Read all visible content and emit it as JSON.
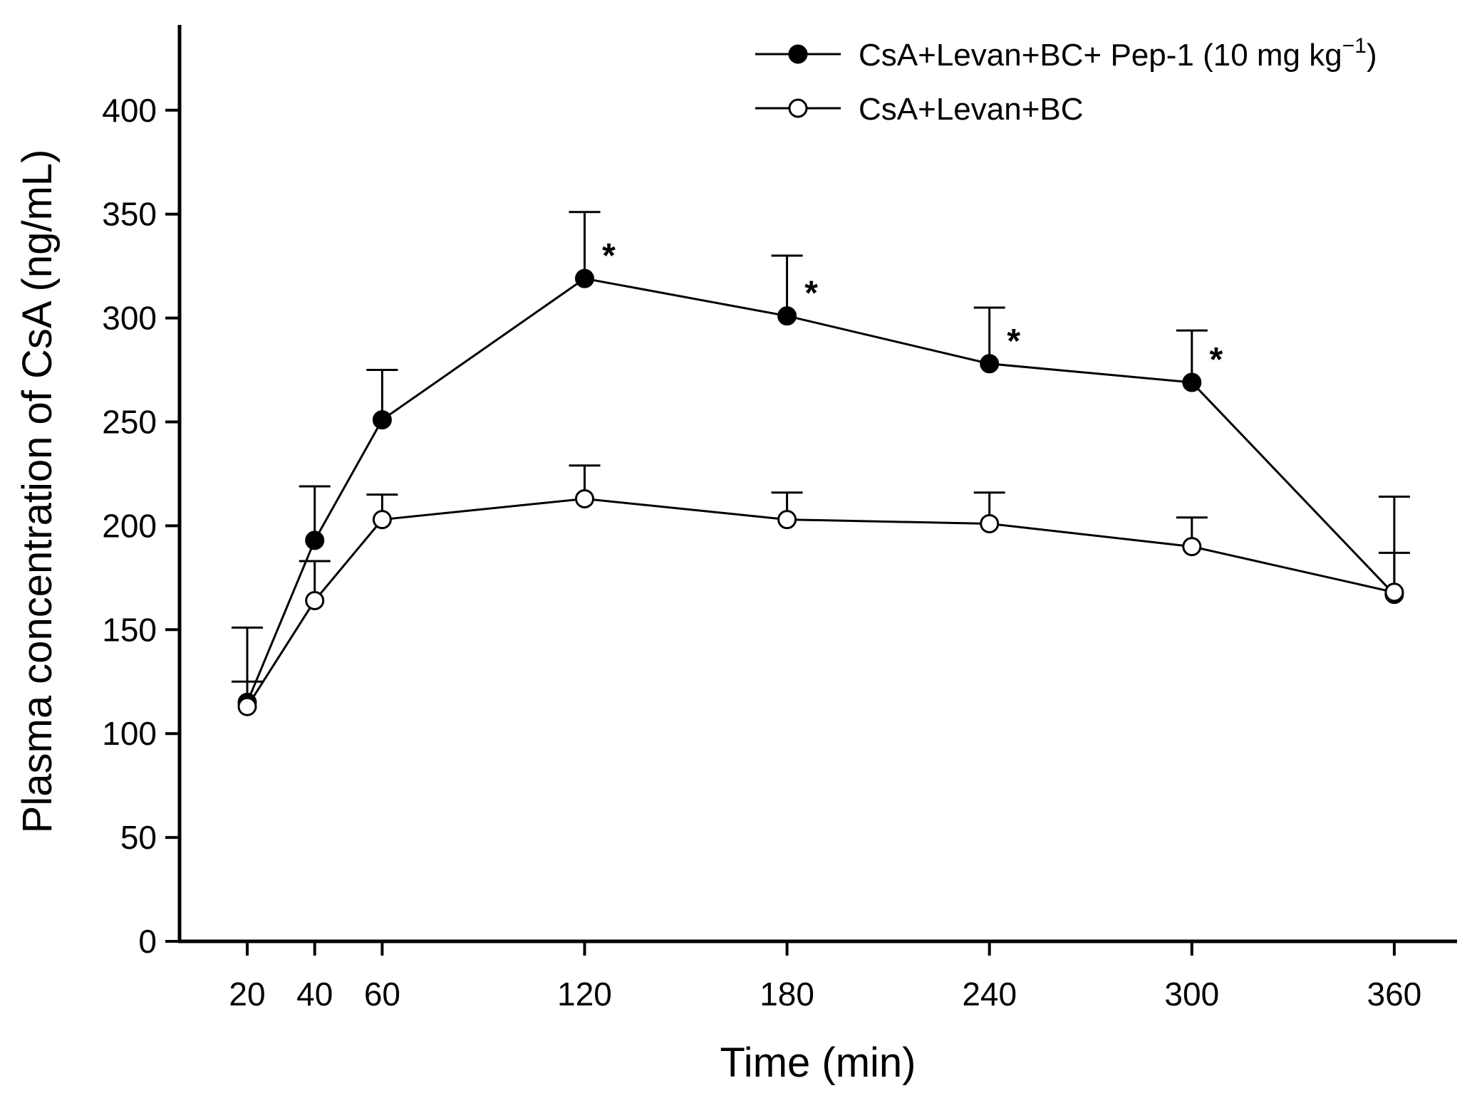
{
  "chart_data": {
    "type": "line",
    "title": "",
    "xlabel": "Time (min)",
    "ylabel": "Plasma concentration of CsA (ng/mL)",
    "x": [
      20,
      40,
      60,
      120,
      180,
      240,
      300,
      360
    ],
    "x_tick_labels": [
      "20",
      "40",
      "60",
      "120",
      "180",
      "240",
      "300",
      "360"
    ],
    "xlim": [
      0,
      380
    ],
    "ylim": [
      0,
      450
    ],
    "y_ticks": [
      0,
      50,
      100,
      150,
      200,
      250,
      300,
      350,
      400
    ],
    "y_tick_labels": [
      "0",
      "50",
      "100",
      "150",
      "200",
      "250",
      "300",
      "350",
      "400"
    ],
    "grid": false,
    "legend_position": "top-right",
    "series": [
      {
        "name": "CsA+Levan+BC+ Pep-1 (10 mg kg",
        "name_superscript": "−1",
        "name_suffix": ")",
        "marker": "filled-circle",
        "values": [
          115,
          193,
          251,
          319,
          301,
          278,
          269,
          167
        ],
        "error_upper": [
          151,
          219,
          275,
          351,
          330,
          305,
          294,
          187
        ],
        "significance": [
          "",
          "",
          "",
          "*",
          "*",
          "*",
          "*",
          ""
        ]
      },
      {
        "name": "CsA+Levan+BC",
        "marker": "open-circle",
        "values": [
          113,
          164,
          203,
          213,
          203,
          201,
          190,
          168
        ],
        "error_upper": [
          125,
          183,
          215,
          229,
          216,
          216,
          204,
          214
        ],
        "significance": [
          "",
          "",
          "",
          "",
          "",
          "",
          "",
          ""
        ]
      }
    ]
  }
}
